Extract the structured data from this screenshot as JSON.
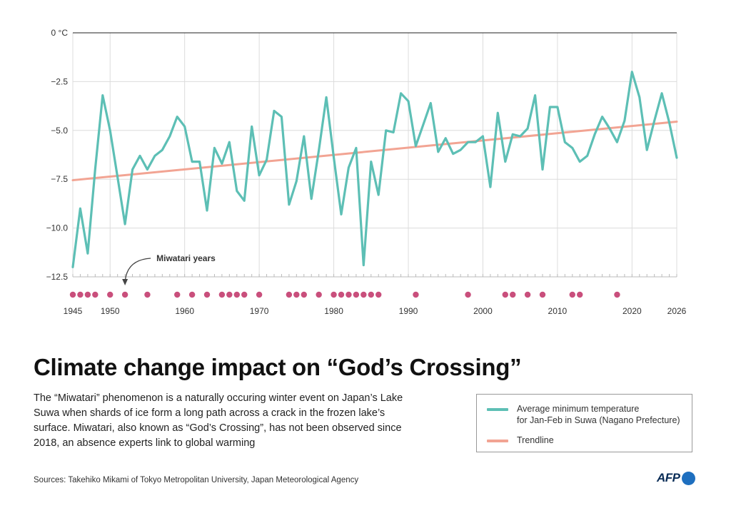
{
  "chart_data": {
    "type": "line",
    "title": "Climate change impact on “God’s Crossing”",
    "description": "The “Miwatari” phenomenon  is a naturally occuring winter event on Japan’s Lake Suwa when shards of ice form a long path across a crack in the frozen lake’s surface. Miwatari, also known as “God’s Crossing”,  has not been observed since 2018, an absence experts link to global warming",
    "xlim": [
      1945,
      2026
    ],
    "ylim": [
      -12.5,
      0
    ],
    "x_ticks": [
      1945,
      1950,
      1960,
      1970,
      1980,
      1990,
      2000,
      2010,
      2020,
      2026
    ],
    "y_ticks": [
      {
        "value": 0,
        "label": "0 °C"
      },
      {
        "value": -2.5,
        "label": "−2.5"
      },
      {
        "value": -5,
        "label": "−5.0"
      },
      {
        "value": -7.5,
        "label": "−7.5"
      },
      {
        "value": -10,
        "label": "−10.0"
      },
      {
        "value": -12.5,
        "label": "−12.5"
      }
    ],
    "series": [
      {
        "name": "Average minimum temperature for Jan-Feb in Suwa (Nagano Prefecture)",
        "color": "#5dbfb5",
        "x": [
          1945,
          1946,
          1947,
          1948,
          1949,
          1950,
          1951,
          1952,
          1953,
          1954,
          1955,
          1956,
          1957,
          1958,
          1959,
          1960,
          1961,
          1962,
          1963,
          1964,
          1965,
          1966,
          1967,
          1968,
          1969,
          1970,
          1971,
          1972,
          1973,
          1974,
          1975,
          1976,
          1977,
          1978,
          1979,
          1980,
          1981,
          1982,
          1983,
          1984,
          1985,
          1986,
          1987,
          1988,
          1989,
          1990,
          1991,
          1992,
          1993,
          1994,
          1995,
          1996,
          1997,
          1998,
          1999,
          2000,
          2001,
          2002,
          2003,
          2004,
          2005,
          2006,
          2007,
          2008,
          2009,
          2010,
          2011,
          2012,
          2013,
          2014,
          2015,
          2016,
          2017,
          2018,
          2019,
          2020,
          2021,
          2022,
          2023,
          2024,
          2025,
          2026
        ],
        "values": [
          -12.0,
          -9.0,
          -11.3,
          -7.0,
          -3.2,
          -5.0,
          -7.4,
          -9.8,
          -7.0,
          -6.3,
          -7.0,
          -6.3,
          -6.0,
          -5.3,
          -4.3,
          -4.8,
          -6.6,
          -6.6,
          -9.1,
          -5.9,
          -6.7,
          -5.6,
          -8.1,
          -8.6,
          -4.8,
          -7.3,
          -6.5,
          -4.0,
          -4.3,
          -8.8,
          -7.6,
          -5.3,
          -8.5,
          -6.0,
          -3.3,
          -6.4,
          -9.3,
          -6.9,
          -5.9,
          -11.9,
          -6.6,
          -8.3,
          -5.0,
          -5.1,
          -3.1,
          -3.5,
          -5.8,
          -4.7,
          -3.6,
          -6.1,
          -5.4,
          -6.2,
          -6.0,
          -5.6,
          -5.6,
          -5.3,
          -7.9,
          -4.1,
          -6.6,
          -5.2,
          -5.3,
          -4.9,
          -3.2,
          -7.0,
          -3.8,
          -3.8,
          -5.6,
          -5.9,
          -6.6,
          -6.3,
          -5.2,
          -4.3,
          -4.9,
          -5.6,
          -4.5,
          -2.0,
          -3.3,
          -6.0,
          -4.5,
          -3.1,
          -4.6,
          -6.4
        ]
      },
      {
        "name": "Trendline",
        "color": "#f2a493",
        "x": [
          1945,
          2026
        ],
        "values": [
          -7.55,
          -4.55
        ]
      }
    ],
    "annotations": [
      {
        "text": "Miwatari years",
        "x": 1952
      }
    ],
    "miwatari_years": [
      1945,
      1946,
      1947,
      1948,
      1950,
      1952,
      1955,
      1959,
      1961,
      1963,
      1965,
      1966,
      1967,
      1968,
      1970,
      1974,
      1975,
      1976,
      1978,
      1980,
      1981,
      1982,
      1983,
      1984,
      1985,
      1986,
      1991,
      1998,
      2003,
      2004,
      2006,
      2008,
      2012,
      2013,
      2018
    ],
    "marker_color": "#c94f7c"
  },
  "legend": {
    "temp_line1": "Average minimum temperature",
    "temp_line2": "for Jan-Feb in Suwa (Nagano Prefecture)",
    "trend": "Trendline"
  },
  "sources": "Sources: Takehiko Mikami of Tokyo Metropolitan University, Japan Meteorological Agency",
  "logo": "AFP"
}
